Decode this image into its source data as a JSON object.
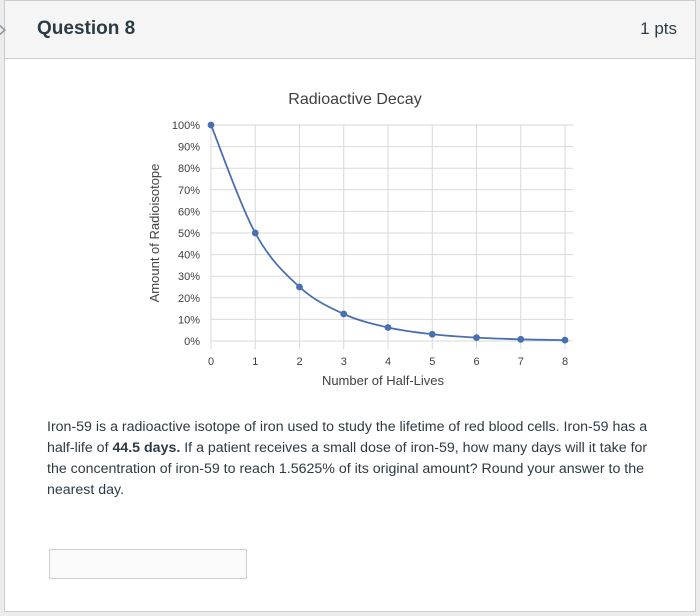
{
  "question": {
    "title": "Question 8",
    "points": "1 pts",
    "text_before": "Iron-59 is a radioactive isotope of iron used to study the lifetime of red blood cells. Iron-59 has a half-life of ",
    "bold": "44.5 days.",
    "text_after": " If a patient receives a small dose of iron-59, how many days will it take for the concentration of iron-59 to reach 1.5625% of its original amount? Round your answer to the nearest day.",
    "answer_value": ""
  },
  "chart_data": {
    "type": "line",
    "title": "Radioactive Decay",
    "xlabel": "Number of Half-Lives",
    "ylabel": "Amount of Radioisotope",
    "x": [
      0,
      1,
      2,
      3,
      4,
      5,
      6,
      7,
      8
    ],
    "y": [
      100,
      50,
      25,
      12.5,
      6.25,
      3.125,
      1.5625,
      0.78125,
      0.390625
    ],
    "xlim": [
      0,
      8
    ],
    "ylim": [
      0,
      100
    ],
    "x_ticks": [
      "0",
      "1",
      "2",
      "3",
      "4",
      "5",
      "6",
      "7",
      "8"
    ],
    "y_ticks": [
      "0%",
      "10%",
      "20%",
      "30%",
      "40%",
      "50%",
      "60%",
      "70%",
      "80%",
      "90%",
      "100%"
    ],
    "grid": true,
    "line_color": "#4a6fb0",
    "grid_color": "#d9d9d9"
  }
}
